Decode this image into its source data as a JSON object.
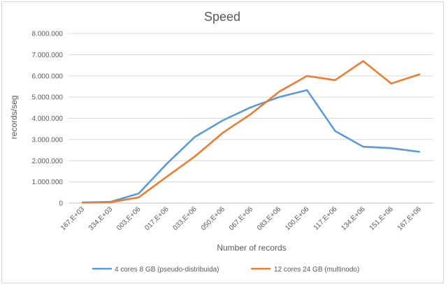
{
  "chart_data": {
    "type": "line",
    "title": "Speed",
    "xlabel": "Number  of records",
    "ylabel": "records/seg",
    "categories": [
      "167,E+03",
      "334,E+03",
      "003,E+06",
      "017,E+06",
      "033,E+06",
      "050,E+06",
      "067,E+06",
      "083,E+06",
      "100,E+06",
      "117,E+06",
      "134,E+06",
      "151,E+06",
      "167,E+06"
    ],
    "yticks": [
      "0",
      "1.000.000",
      "2.000.000",
      "3.000.000",
      "4.000.000",
      "5.000.000",
      "6.000.000",
      "7.000.000",
      "8.000.000"
    ],
    "ylim": [
      0,
      8000000
    ],
    "grid": true,
    "legend_position": "bottom",
    "series": [
      {
        "name": "4 cores 8 GB (pseudo-distribuida)",
        "color": "#5b9bd5",
        "values": [
          30000,
          60000,
          450000,
          1850000,
          3120000,
          3900000,
          4520000,
          5000000,
          5330000,
          3400000,
          2660000,
          2590000,
          2420000
        ]
      },
      {
        "name": "12 cores 24 GB (multinodo)",
        "color": "#ed7d31",
        "values": [
          20000,
          40000,
          270000,
          1240000,
          2200000,
          3320000,
          4200000,
          5250000,
          6000000,
          5800000,
          6700000,
          5640000,
          6070000
        ]
      }
    ]
  }
}
